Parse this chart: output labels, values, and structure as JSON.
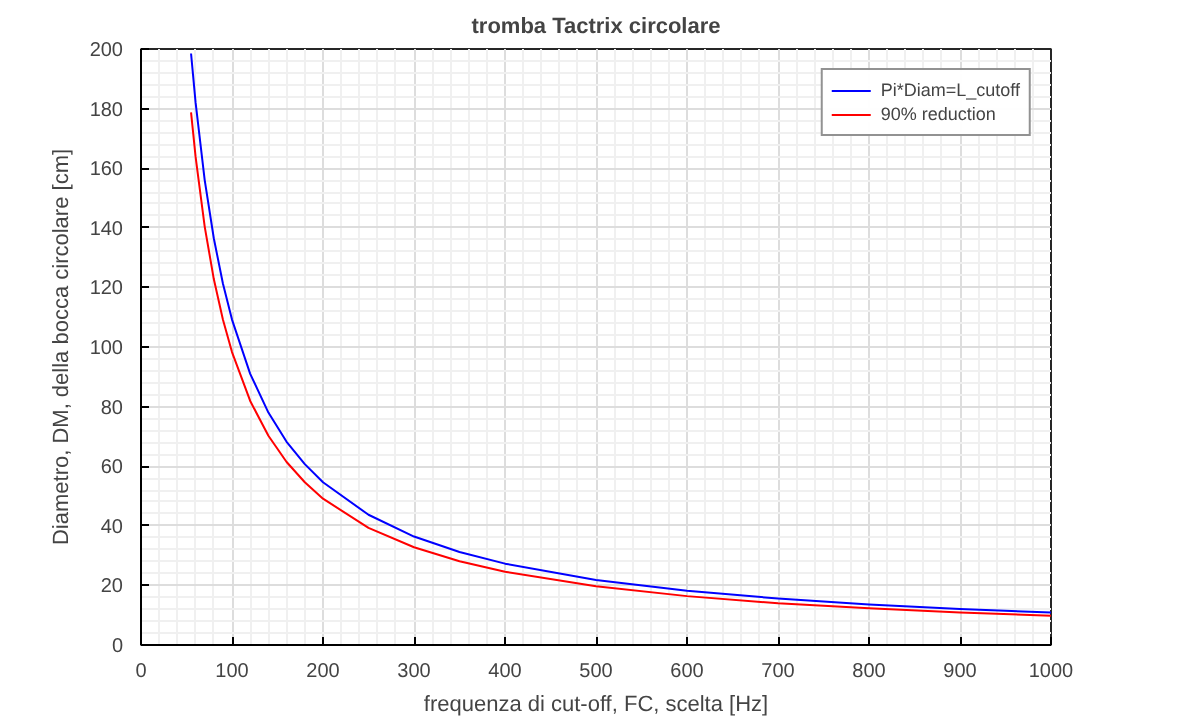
{
  "chart_data": {
    "type": "line",
    "title": "tromba Tactrix circolare",
    "xlabel": "frequenza di cut-off, FC, scelta [Hz]",
    "ylabel": "Diametro, DM, della bocca circolare [cm]",
    "x": [
      55,
      60,
      70,
      80,
      90,
      100,
      120,
      140,
      160,
      180,
      200,
      250,
      300,
      350,
      400,
      500,
      600,
      700,
      800,
      900,
      1000
    ],
    "series": [
      {
        "name": "Pi*Diam=L_cutoff",
        "color": "#0000ff",
        "values": [
          198.5,
          182.0,
          156.0,
          136.5,
          121.3,
          109.2,
          91.0,
          78.0,
          68.2,
          60.7,
          54.6,
          43.7,
          36.4,
          31.2,
          27.3,
          21.8,
          18.2,
          15.6,
          13.6,
          12.1,
          10.9
        ]
      },
      {
        "name": "90% reduction",
        "color": "#ff0000",
        "values": [
          178.7,
          163.8,
          140.4,
          122.8,
          109.2,
          98.3,
          81.9,
          70.2,
          61.4,
          54.6,
          49.1,
          39.3,
          32.8,
          28.1,
          24.6,
          19.7,
          16.4,
          14.0,
          12.3,
          10.9,
          9.8
        ]
      }
    ],
    "xlim": [
      0,
      1000
    ],
    "ylim": [
      0,
      200
    ],
    "xticks": [
      0,
      100,
      200,
      300,
      400,
      500,
      600,
      700,
      800,
      900,
      1000
    ],
    "yticks": [
      0,
      20,
      40,
      60,
      80,
      100,
      120,
      140,
      160,
      180,
      200
    ],
    "grid": true,
    "legend": "top right",
    "line_style": "solid"
  }
}
